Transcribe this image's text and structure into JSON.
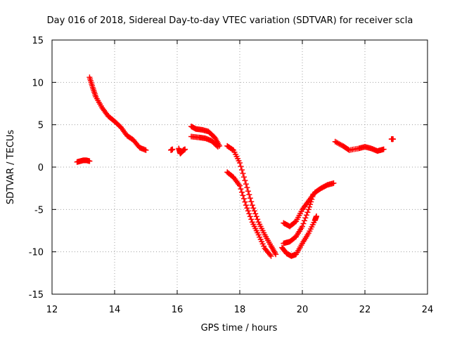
{
  "chart_data": {
    "type": "scatter",
    "title": "Day 016 of 2018, Sidereal Day-to-day VTEC variation (SDTVAR) for receiver scla",
    "xlabel": "GPS time / hours",
    "ylabel": "SDTVAR / TECUs",
    "xlim": [
      12,
      24
    ],
    "ylim": [
      -15,
      15
    ],
    "xticks": [
      12,
      14,
      16,
      18,
      20,
      22,
      24
    ],
    "yticks": [
      -15,
      -10,
      -5,
      0,
      5,
      10,
      15
    ],
    "xtick_labels": [
      "12",
      "14",
      "16",
      "18",
      "20",
      "22",
      "24"
    ],
    "ytick_labels": [
      "-15",
      "-10",
      "-5",
      "0",
      "5",
      "10",
      "15"
    ],
    "grid": true,
    "marker": "+",
    "series": [
      {
        "name": "SDTVAR",
        "color": "#ff0000",
        "segments": [
          [
            [
              12.8,
              0.6
            ],
            [
              12.9,
              0.7
            ],
            [
              13.0,
              0.8
            ],
            [
              13.1,
              0.8
            ],
            [
              13.2,
              0.7
            ]
          ],
          [
            [
              13.2,
              10.6
            ],
            [
              13.3,
              9.4
            ],
            [
              13.4,
              8.3
            ],
            [
              13.6,
              7.0
            ],
            [
              13.8,
              6.0
            ],
            [
              14.0,
              5.4
            ],
            [
              14.2,
              4.7
            ],
            [
              14.4,
              3.7
            ],
            [
              14.6,
              3.2
            ],
            [
              14.8,
              2.3
            ],
            [
              15.0,
              2.0
            ]
          ],
          [
            [
              15.8,
              2.0
            ],
            [
              15.85,
              2.1
            ]
          ],
          [
            [
              16.05,
              2.2
            ],
            [
              16.1,
              1.6
            ],
            [
              16.2,
              2.0
            ],
            [
              16.25,
              2.1
            ]
          ],
          [
            [
              16.45,
              4.8
            ],
            [
              16.6,
              4.5
            ],
            [
              16.8,
              4.4
            ],
            [
              17.0,
              4.2
            ],
            [
              17.2,
              3.5
            ],
            [
              17.35,
              2.5
            ]
          ],
          [
            [
              16.45,
              3.6
            ],
            [
              16.7,
              3.5
            ],
            [
              16.9,
              3.4
            ],
            [
              17.1,
              3.1
            ],
            [
              17.3,
              2.4
            ]
          ],
          [
            [
              17.6,
              2.5
            ],
            [
              17.8,
              2.0
            ],
            [
              18.0,
              0.5
            ],
            [
              18.2,
              -2.0
            ],
            [
              18.4,
              -4.5
            ],
            [
              18.6,
              -6.5
            ],
            [
              18.8,
              -8.0
            ],
            [
              19.0,
              -9.3
            ],
            [
              19.15,
              -10.3
            ]
          ],
          [
            [
              17.6,
              -0.6
            ],
            [
              17.8,
              -1.2
            ],
            [
              18.0,
              -2.2
            ],
            [
              18.2,
              -4.5
            ],
            [
              18.4,
              -6.5
            ],
            [
              18.6,
              -8.0
            ],
            [
              18.8,
              -9.6
            ],
            [
              19.0,
              -10.5
            ]
          ],
          [
            [
              19.4,
              -6.6
            ],
            [
              19.6,
              -7.0
            ],
            [
              19.8,
              -6.4
            ],
            [
              20.0,
              -5.0
            ],
            [
              20.2,
              -4.0
            ],
            [
              20.4,
              -3.0
            ],
            [
              20.6,
              -2.5
            ],
            [
              20.8,
              -2.1
            ],
            [
              21.0,
              -1.9
            ]
          ],
          [
            [
              19.35,
              -9.5
            ],
            [
              19.5,
              -10.2
            ],
            [
              19.65,
              -10.5
            ],
            [
              19.8,
              -10.3
            ],
            [
              20.0,
              -9.0
            ],
            [
              20.2,
              -7.8
            ],
            [
              20.4,
              -6.3
            ],
            [
              20.45,
              -5.8
            ]
          ],
          [
            [
              19.4,
              -9.0
            ],
            [
              19.6,
              -8.8
            ],
            [
              19.8,
              -8.2
            ],
            [
              20.0,
              -7.0
            ],
            [
              20.2,
              -5.0
            ],
            [
              20.35,
              -3.2
            ]
          ],
          [
            [
              21.05,
              3.0
            ],
            [
              21.3,
              2.5
            ],
            [
              21.5,
              2.0
            ],
            [
              21.8,
              2.2
            ],
            [
              22.0,
              2.4
            ],
            [
              22.2,
              2.2
            ],
            [
              22.4,
              1.9
            ],
            [
              22.6,
              2.1
            ]
          ],
          [
            [
              22.85,
              3.3
            ],
            [
              22.9,
              3.3
            ]
          ]
        ]
      }
    ]
  }
}
